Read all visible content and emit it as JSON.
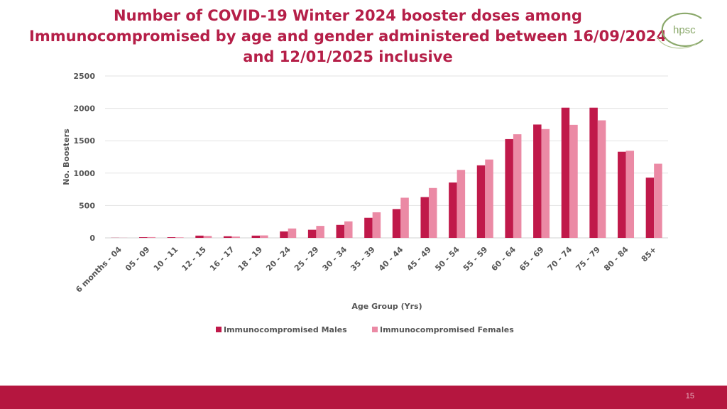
{
  "slide": {
    "title_lines": [
      "Number of COVID-19 Winter 2024 booster doses among",
      "Immunocompromised by age and gender administered between 16/09/2024",
      "and 12/01/2025 inclusive"
    ],
    "logo_text": "hpsc",
    "page_number": "15"
  },
  "colors": {
    "title": "#b51f48",
    "males": "#c0194a",
    "females": "#eb8aa5",
    "footer": "#b5163f",
    "logo": "#8aa86a"
  },
  "chart_data": {
    "type": "bar",
    "xlabel": "Age Group (Yrs)",
    "ylabel": "No. Boosters",
    "ylim": [
      0,
      2500
    ],
    "yticks": [
      0,
      500,
      1000,
      1500,
      2000,
      2500
    ],
    "grid": true,
    "legend_position": "bottom",
    "categories": [
      "6 months - 04",
      "05 - 09",
      "10 - 11",
      "12 - 15",
      "16 - 17",
      "18 - 19",
      "20 - 24",
      "25 - 29",
      "30 - 34",
      "35 - 39",
      "40 - 44",
      "45 - 49",
      "50 - 54",
      "55 - 59",
      "60 - 64",
      "65 - 69",
      "70 - 74",
      "75 - 79",
      "80 - 84",
      "85+"
    ],
    "series": [
      {
        "name": "Immunocompromised Males",
        "color": "#c0194a",
        "values": [
          2,
          10,
          10,
          35,
          25,
          35,
          100,
          125,
          200,
          310,
          445,
          630,
          855,
          1120,
          1525,
          1750,
          2010,
          2010,
          1330,
          930
        ]
      },
      {
        "name": "Immunocompromised Females",
        "color": "#eb8aa5",
        "values": [
          2,
          12,
          8,
          30,
          20,
          38,
          145,
          185,
          255,
          395,
          620,
          770,
          1050,
          1210,
          1600,
          1680,
          1745,
          1815,
          1345,
          1145
        ]
      }
    ]
  }
}
